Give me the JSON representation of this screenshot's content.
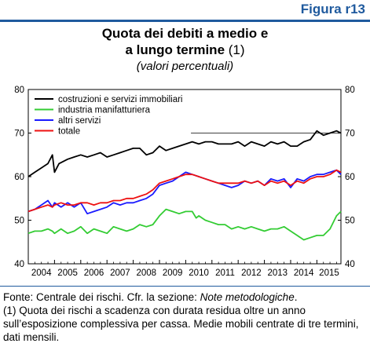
{
  "figure_label": "Figura r13",
  "title_line1": "Quota dei debiti a medio e",
  "title_line2": "a lungo termine",
  "title_note_ref": "(1)",
  "subtitle": "(valori percentuali)",
  "notes": {
    "source_prefix": "Fonte: Centrale dei rischi. Cfr. la sezione: ",
    "source_italic": "Note metodologiche",
    "source_suffix": ".",
    "footnote": "(1) Quota dei rischi a scadenza con durata residua oltre un anno sull’esposizione complessiva per cassa. Medie mobili centrate di tre termini, dati mensili."
  },
  "colors": {
    "accent": "#1f5a9e",
    "costruzioni": "#000000",
    "industria": "#33cc33",
    "altri": "#1a1aff",
    "totale": "#ee1111"
  },
  "chart_data": {
    "type": "line",
    "x_labels": [
      "2004",
      "2005",
      "2006",
      "2007",
      "2008",
      "2009",
      "2010",
      "2011",
      "2012",
      "2013",
      "2014",
      "2015"
    ],
    "x_range": [
      2004.0,
      2015.917
    ],
    "ylim": [
      40,
      80
    ],
    "yticks": [
      40,
      50,
      60,
      70,
      80
    ],
    "legend_position": "top-left",
    "grid": false,
    "reference_line_y": 70,
    "series": [
      {
        "name": "costruzioni e servizi immobiliari",
        "color": "#000000",
        "points": [
          [
            2004.0,
            60.0
          ],
          [
            2004.25,
            61.0
          ],
          [
            2004.5,
            62.0
          ],
          [
            2004.75,
            63.0
          ],
          [
            2004.92,
            65.0
          ],
          [
            2005.0,
            61.0
          ],
          [
            2005.17,
            63.0
          ],
          [
            2005.5,
            64.0
          ],
          [
            2005.75,
            64.5
          ],
          [
            2006.0,
            65.0
          ],
          [
            2006.25,
            64.5
          ],
          [
            2006.5,
            65.0
          ],
          [
            2006.75,
            65.5
          ],
          [
            2007.0,
            64.5
          ],
          [
            2007.25,
            65.0
          ],
          [
            2007.5,
            65.5
          ],
          [
            2007.75,
            66.0
          ],
          [
            2008.0,
            66.5
          ],
          [
            2008.25,
            66.5
          ],
          [
            2008.5,
            65.0
          ],
          [
            2008.75,
            65.5
          ],
          [
            2009.0,
            67.0
          ],
          [
            2009.25,
            66.0
          ],
          [
            2009.5,
            66.5
          ],
          [
            2009.75,
            67.0
          ],
          [
            2010.0,
            67.5
          ],
          [
            2010.25,
            68.0
          ],
          [
            2010.5,
            67.5
          ],
          [
            2010.75,
            68.0
          ],
          [
            2011.0,
            68.0
          ],
          [
            2011.25,
            67.5
          ],
          [
            2011.5,
            67.5
          ],
          [
            2011.75,
            67.5
          ],
          [
            2012.0,
            68.0
          ],
          [
            2012.25,
            67.0
          ],
          [
            2012.5,
            68.0
          ],
          [
            2012.75,
            67.5
          ],
          [
            2013.0,
            67.0
          ],
          [
            2013.25,
            68.0
          ],
          [
            2013.5,
            67.5
          ],
          [
            2013.75,
            68.0
          ],
          [
            2014.0,
            67.0
          ],
          [
            2014.25,
            67.0
          ],
          [
            2014.5,
            68.0
          ],
          [
            2014.75,
            68.5
          ],
          [
            2015.0,
            70.5
          ],
          [
            2015.25,
            69.5
          ],
          [
            2015.5,
            70.0
          ],
          [
            2015.75,
            70.5
          ],
          [
            2015.917,
            70.0
          ]
        ]
      },
      {
        "name": "industria manifatturiera",
        "color": "#33cc33",
        "points": [
          [
            2004.0,
            47.0
          ],
          [
            2004.25,
            47.5
          ],
          [
            2004.5,
            47.5
          ],
          [
            2004.75,
            48.0
          ],
          [
            2004.92,
            47.5
          ],
          [
            2005.0,
            47.0
          ],
          [
            2005.25,
            48.0
          ],
          [
            2005.5,
            47.0
          ],
          [
            2005.75,
            47.5
          ],
          [
            2006.0,
            48.5
          ],
          [
            2006.25,
            47.0
          ],
          [
            2006.5,
            48.0
          ],
          [
            2006.75,
            47.5
          ],
          [
            2007.0,
            47.0
          ],
          [
            2007.25,
            48.5
          ],
          [
            2007.5,
            48.0
          ],
          [
            2007.75,
            47.5
          ],
          [
            2008.0,
            48.0
          ],
          [
            2008.25,
            49.0
          ],
          [
            2008.5,
            48.5
          ],
          [
            2008.75,
            49.0
          ],
          [
            2009.0,
            51.0
          ],
          [
            2009.25,
            52.5
          ],
          [
            2009.5,
            52.0
          ],
          [
            2009.75,
            51.5
          ],
          [
            2010.0,
            52.0
          ],
          [
            2010.25,
            52.0
          ],
          [
            2010.4,
            50.5
          ],
          [
            2010.5,
            51.0
          ],
          [
            2010.75,
            50.0
          ],
          [
            2011.0,
            49.5
          ],
          [
            2011.25,
            49.0
          ],
          [
            2011.5,
            49.0
          ],
          [
            2011.75,
            48.0
          ],
          [
            2012.0,
            48.5
          ],
          [
            2012.25,
            48.0
          ],
          [
            2012.5,
            48.5
          ],
          [
            2012.75,
            48.0
          ],
          [
            2013.0,
            47.5
          ],
          [
            2013.25,
            48.0
          ],
          [
            2013.5,
            48.0
          ],
          [
            2013.75,
            48.5
          ],
          [
            2014.0,
            47.5
          ],
          [
            2014.25,
            46.5
          ],
          [
            2014.5,
            45.5
          ],
          [
            2014.75,
            46.0
          ],
          [
            2015.0,
            46.5
          ],
          [
            2015.25,
            46.5
          ],
          [
            2015.5,
            48.0
          ],
          [
            2015.75,
            51.0
          ],
          [
            2015.917,
            52.0
          ]
        ]
      },
      {
        "name": "altri servizi",
        "color": "#1a1aff",
        "points": [
          [
            2004.0,
            52.0
          ],
          [
            2004.25,
            52.5
          ],
          [
            2004.5,
            53.5
          ],
          [
            2004.75,
            54.5
          ],
          [
            2004.92,
            53.0
          ],
          [
            2005.0,
            54.0
          ],
          [
            2005.25,
            53.0
          ],
          [
            2005.5,
            54.0
          ],
          [
            2005.75,
            53.0
          ],
          [
            2006.0,
            54.0
          ],
          [
            2006.25,
            51.5
          ],
          [
            2006.5,
            52.0
          ],
          [
            2006.75,
            52.5
          ],
          [
            2007.0,
            53.0
          ],
          [
            2007.25,
            54.0
          ],
          [
            2007.5,
            53.5
          ],
          [
            2007.75,
            54.0
          ],
          [
            2008.0,
            54.0
          ],
          [
            2008.25,
            54.5
          ],
          [
            2008.5,
            55.0
          ],
          [
            2008.75,
            56.0
          ],
          [
            2009.0,
            58.0
          ],
          [
            2009.25,
            58.5
          ],
          [
            2009.5,
            59.0
          ],
          [
            2009.75,
            60.0
          ],
          [
            2010.0,
            61.0
          ],
          [
            2010.25,
            60.5
          ],
          [
            2010.5,
            60.0
          ],
          [
            2010.75,
            59.5
          ],
          [
            2011.0,
            59.0
          ],
          [
            2011.25,
            58.5
          ],
          [
            2011.5,
            58.0
          ],
          [
            2011.75,
            57.5
          ],
          [
            2012.0,
            58.0
          ],
          [
            2012.25,
            59.0
          ],
          [
            2012.5,
            58.5
          ],
          [
            2012.75,
            59.0
          ],
          [
            2013.0,
            58.0
          ],
          [
            2013.25,
            59.5
          ],
          [
            2013.5,
            59.0
          ],
          [
            2013.75,
            59.5
          ],
          [
            2014.0,
            57.5
          ],
          [
            2014.25,
            59.5
          ],
          [
            2014.5,
            59.0
          ],
          [
            2014.75,
            60.0
          ],
          [
            2015.0,
            60.5
          ],
          [
            2015.25,
            60.5
          ],
          [
            2015.5,
            61.0
          ],
          [
            2015.75,
            61.5
          ],
          [
            2015.917,
            60.5
          ]
        ]
      },
      {
        "name": "totale",
        "color": "#ee1111",
        "points": [
          [
            2004.0,
            52.0
          ],
          [
            2004.25,
            52.5
          ],
          [
            2004.5,
            53.0
          ],
          [
            2004.75,
            53.5
          ],
          [
            2004.92,
            53.0
          ],
          [
            2005.0,
            53.5
          ],
          [
            2005.25,
            54.0
          ],
          [
            2005.5,
            53.5
          ],
          [
            2005.75,
            53.5
          ],
          [
            2006.0,
            54.0
          ],
          [
            2006.25,
            54.0
          ],
          [
            2006.5,
            53.5
          ],
          [
            2006.75,
            54.0
          ],
          [
            2007.0,
            54.0
          ],
          [
            2007.25,
            54.5
          ],
          [
            2007.5,
            54.5
          ],
          [
            2007.75,
            55.0
          ],
          [
            2008.0,
            55.0
          ],
          [
            2008.25,
            55.5
          ],
          [
            2008.5,
            56.0
          ],
          [
            2008.75,
            57.0
          ],
          [
            2009.0,
            58.5
          ],
          [
            2009.25,
            59.0
          ],
          [
            2009.5,
            59.5
          ],
          [
            2009.75,
            60.0
          ],
          [
            2010.0,
            60.5
          ],
          [
            2010.25,
            60.5
          ],
          [
            2010.5,
            60.0
          ],
          [
            2010.75,
            59.5
          ],
          [
            2011.0,
            59.0
          ],
          [
            2011.25,
            58.5
          ],
          [
            2011.5,
            58.5
          ],
          [
            2011.75,
            58.5
          ],
          [
            2012.0,
            58.5
          ],
          [
            2012.25,
            59.0
          ],
          [
            2012.5,
            58.5
          ],
          [
            2012.75,
            59.0
          ],
          [
            2013.0,
            58.0
          ],
          [
            2013.25,
            59.0
          ],
          [
            2013.5,
            58.5
          ],
          [
            2013.75,
            59.0
          ],
          [
            2014.0,
            58.0
          ],
          [
            2014.25,
            59.0
          ],
          [
            2014.5,
            58.5
          ],
          [
            2014.75,
            59.5
          ],
          [
            2015.0,
            60.0
          ],
          [
            2015.25,
            60.0
          ],
          [
            2015.5,
            60.5
          ],
          [
            2015.75,
            61.5
          ],
          [
            2015.917,
            61.0
          ]
        ]
      }
    ]
  }
}
